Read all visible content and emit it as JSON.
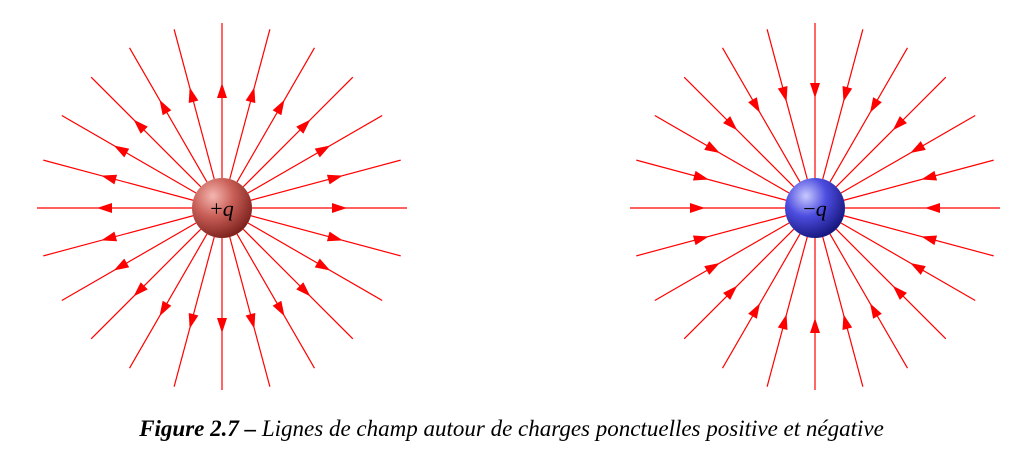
{
  "figure": {
    "label": "Figure 2.7 –",
    "text": " Lignes de champ autour de charges ponctuelles positive et négative"
  },
  "charges": [
    {
      "id": "positive",
      "sign": "+",
      "symbol": "q",
      "field_direction": "outward",
      "field_line_count": 24,
      "color": "#c0504d"
    },
    {
      "id": "negative",
      "sign": "−",
      "symbol": "q",
      "field_direction": "inward",
      "field_line_count": 24,
      "color": "#3b3bd6"
    }
  ],
  "colors": {
    "field_line": "#ff0000",
    "arrow": "#ff0000"
  }
}
